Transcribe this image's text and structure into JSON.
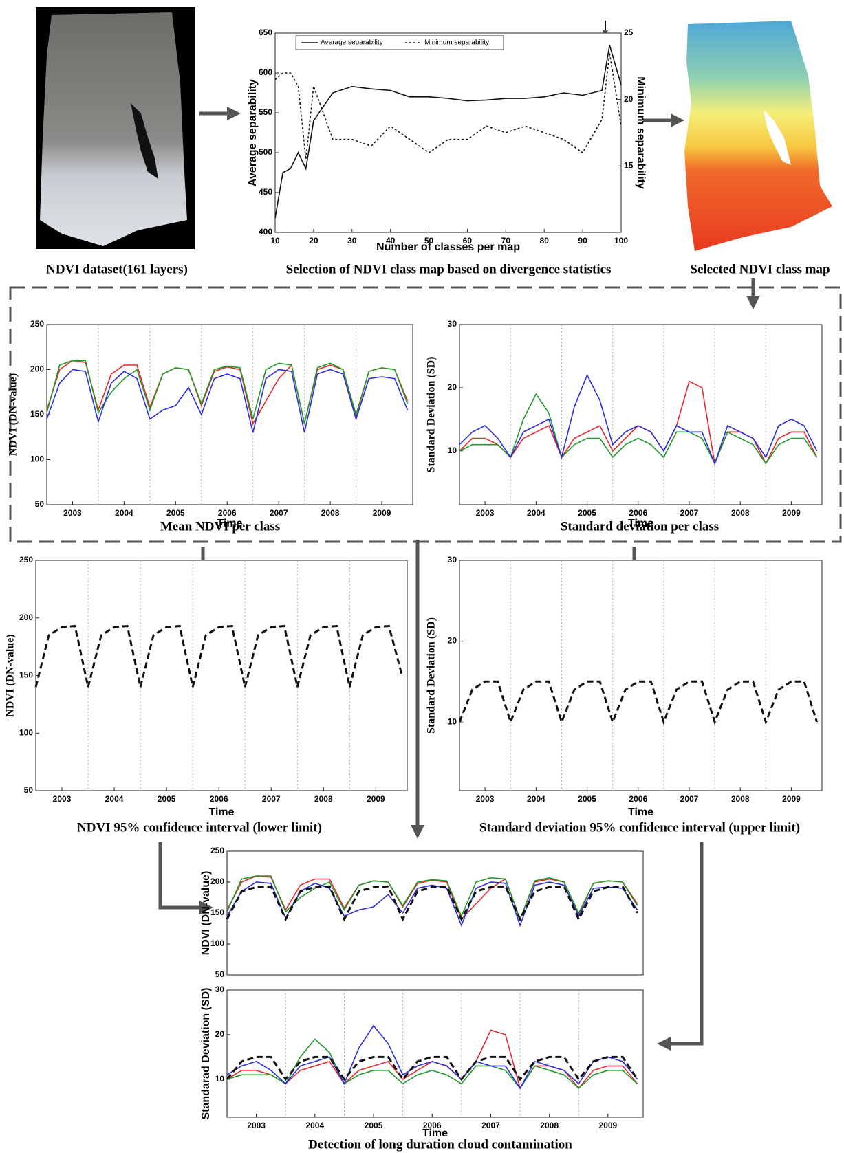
{
  "captions": [
    "NDVI dataset(161 layers)",
    "Selection of NDVI class map based on divergence statistics",
    "Selected NDVI class map",
    "Mean NDVI per class",
    "Standard deviation per class",
    "NDVI 95% confidence interval (lower limit)",
    "Standard deviation 95% confidence interval (upper limit)",
    "Detection of long duration cloud contamination"
  ],
  "chart_data": [
    {
      "type": "line",
      "x_label": "Number of classes per map",
      "y_label": "Average separability",
      "y2_label": "Minimum separability",
      "legend": "upper center",
      "x": [
        10,
        12,
        14,
        16,
        18,
        20,
        25,
        30,
        35,
        40,
        45,
        50,
        55,
        60,
        65,
        70,
        75,
        80,
        85,
        90,
        95,
        97,
        100
      ],
      "series": [
        {
          "name": "Average separability",
          "color": "#111111",
          "style": "solid",
          "values": [
            418,
            475,
            480,
            500,
            480,
            540,
            575,
            583,
            580,
            578,
            570,
            570,
            568,
            565,
            566,
            568,
            568,
            570,
            575,
            572,
            578,
            635,
            585
          ]
        },
        {
          "name": "Minimum separability",
          "color": "#111111",
          "style": "dotted",
          "axis": "y2",
          "values": [
            21.5,
            22,
            22,
            21,
            15.5,
            21,
            17,
            17,
            16.5,
            18,
            17,
            16,
            17,
            17,
            18,
            17.5,
            18,
            17.5,
            17,
            16,
            18.5,
            23.5,
            18
          ]
        }
      ],
      "xlim": [
        10,
        100
      ],
      "xticks": [
        10,
        20,
        30,
        40,
        50,
        60,
        70,
        80,
        90,
        100
      ],
      "ylim": [
        400,
        650
      ],
      "yticks": [
        400,
        450,
        500,
        550,
        600,
        650
      ],
      "y2lim": [
        10,
        25
      ],
      "y2ticks": [
        15,
        20,
        25
      ]
    },
    {
      "type": "line",
      "x_label": "Time",
      "y_label": "NDVI (DN-value)",
      "year_separators": true,
      "x": [
        2002.5,
        2002.75,
        2003,
        2003.25,
        2003.5,
        2003.75,
        2004,
        2004.25,
        2004.5,
        2004.75,
        2005,
        2005.25,
        2005.5,
        2005.75,
        2006,
        2006.25,
        2006.5,
        2006.75,
        2007,
        2007.25,
        2007.5,
        2007.75,
        2008,
        2008.25,
        2008.5,
        2008.75,
        2009,
        2009.25,
        2009.5
      ],
      "series": [
        {
          "color": "#e8262a",
          "style": "solid",
          "values": [
            155,
            200,
            210,
            208,
            155,
            195,
            205,
            205,
            158,
            195,
            202,
            200,
            160,
            198,
            203,
            200,
            140,
            165,
            190,
            205,
            140,
            200,
            205,
            200,
            148,
            198,
            202,
            200,
            165
          ]
        },
        {
          "color": "#1f9a2a",
          "style": "solid",
          "values": [
            152,
            205,
            210,
            210,
            152,
            175,
            190,
            200,
            155,
            195,
            202,
            200,
            162,
            200,
            204,
            202,
            145,
            200,
            207,
            205,
            140,
            202,
            207,
            200,
            150,
            198,
            202,
            200,
            162
          ]
        },
        {
          "color": "#2b2ee0",
          "style": "solid",
          "values": [
            145,
            185,
            200,
            198,
            142,
            185,
            198,
            190,
            145,
            155,
            160,
            180,
            150,
            190,
            195,
            190,
            130,
            190,
            200,
            198,
            130,
            195,
            200,
            195,
            145,
            190,
            192,
            190,
            155
          ]
        }
      ],
      "xlim": [
        2002.5,
        2009.6
      ],
      "xticks": [
        2003,
        2004,
        2005,
        2006,
        2007,
        2008,
        2009
      ],
      "ylim": [
        50,
        250
      ],
      "yticks": [
        50,
        100,
        150,
        200,
        250
      ]
    },
    {
      "type": "line",
      "x_label": "Time",
      "y_label": "Standard Deviation (SD)",
      "year_separators": true,
      "x": [
        2002.5,
        2002.75,
        2003,
        2003.25,
        2003.5,
        2003.75,
        2004,
        2004.25,
        2004.5,
        2004.75,
        2005,
        2005.25,
        2005.5,
        2005.75,
        2006,
        2006.25,
        2006.5,
        2006.75,
        2007,
        2007.25,
        2007.5,
        2007.75,
        2008,
        2008.25,
        2008.5,
        2008.75,
        2009,
        2009.25,
        2009.5
      ],
      "series": [
        {
          "color": "#e8262a",
          "style": "solid",
          "values": [
            10,
            12,
            12,
            11,
            9,
            12,
            13,
            14,
            9,
            12,
            13,
            14,
            10,
            12,
            14,
            13,
            10,
            14,
            21,
            20,
            8,
            13,
            13,
            12,
            8,
            12,
            13,
            13,
            9
          ]
        },
        {
          "color": "#1f9a2a",
          "style": "solid",
          "values": [
            10,
            11,
            11,
            11,
            9,
            15,
            19,
            16,
            9,
            11,
            12,
            12,
            9,
            11,
            12,
            11,
            9,
            13,
            13,
            12,
            8,
            13,
            12,
            11,
            8,
            11,
            12,
            12,
            9
          ]
        },
        {
          "color": "#2b2ee0",
          "style": "solid",
          "values": [
            11,
            13,
            14,
            12,
            9,
            13,
            14,
            15,
            9,
            17,
            22,
            18,
            11,
            13,
            14,
            13,
            10,
            14,
            13,
            13,
            8,
            14,
            13,
            12,
            9,
            14,
            15,
            14,
            10
          ]
        }
      ],
      "xlim": [
        2002.5,
        2009.6
      ],
      "xticks": [
        2003,
        2004,
        2005,
        2006,
        2007,
        2008,
        2009
      ],
      "ylim": [
        1.5,
        30
      ],
      "yticks": [
        10,
        20,
        30
      ]
    },
    {
      "type": "line",
      "x_label": "Time",
      "y_label": "NDVI (DN-value)",
      "year_separators": true,
      "x": [
        2002.5,
        2002.75,
        2003,
        2003.25,
        2003.5,
        2003.75,
        2004,
        2004.25,
        2004.5,
        2004.75,
        2005,
        2005.25,
        2005.5,
        2005.75,
        2006,
        2006.25,
        2006.5,
        2006.75,
        2007,
        2007.25,
        2007.5,
        2007.75,
        2008,
        2008.25,
        2008.5,
        2008.75,
        2009,
        2009.25,
        2009.5
      ],
      "series": [
        {
          "color": "#111111",
          "style": "dashed",
          "values": [
            140,
            185,
            192,
            193,
            140,
            185,
            192,
            193,
            140,
            185,
            192,
            193,
            140,
            185,
            192,
            193,
            140,
            185,
            192,
            193,
            140,
            185,
            192,
            193,
            140,
            185,
            192,
            193,
            150
          ]
        }
      ],
      "xlim": [
        2002.5,
        2009.6
      ],
      "xticks": [
        2003,
        2004,
        2005,
        2006,
        2007,
        2008,
        2009
      ],
      "ylim": [
        50,
        250
      ],
      "yticks": [
        50,
        100,
        150,
        200,
        250
      ]
    },
    {
      "type": "line",
      "x_label": "Time",
      "y_label": "Standard Deviation (SD)",
      "year_separators": true,
      "x": [
        2002.5,
        2002.75,
        2003,
        2003.25,
        2003.5,
        2003.75,
        2004,
        2004.25,
        2004.5,
        2004.75,
        2005,
        2005.25,
        2005.5,
        2005.75,
        2006,
        2006.25,
        2006.5,
        2006.75,
        2007,
        2007.25,
        2007.5,
        2007.75,
        2008,
        2008.25,
        2008.5,
        2008.75,
        2009,
        2009.25,
        2009.5
      ],
      "series": [
        {
          "color": "#111111",
          "style": "dashed",
          "values": [
            10,
            14,
            15,
            15,
            10,
            14,
            15,
            15,
            10,
            14,
            15,
            15,
            10,
            14,
            15,
            15,
            10,
            14,
            15,
            15,
            10,
            14,
            15,
            15,
            10,
            14,
            15,
            15,
            10
          ]
        }
      ],
      "xlim": [
        2002.5,
        2009.6
      ],
      "xticks": [
        2003,
        2004,
        2005,
        2006,
        2007,
        2008,
        2009
      ],
      "ylim": [
        1.5,
        30
      ],
      "yticks": [
        10,
        20,
        30
      ]
    },
    {
      "type": "line",
      "y_label": "NDVI (DN-value)",
      "xlim": [
        2002.5,
        2009.6
      ],
      "ylim": [
        50,
        250
      ],
      "yticks": [
        50,
        100,
        150,
        200,
        250
      ]
    },
    {
      "type": "line",
      "x_label": "Time",
      "y_label": "Standarad Deviation (SD)",
      "year_separators": true,
      "xlim": [
        2002.5,
        2009.6
      ],
      "xticks": [
        2003,
        2004,
        2005,
        2006,
        2007,
        2008,
        2009
      ],
      "ylim": [
        1.5,
        30
      ],
      "yticks": [
        10,
        20,
        30
      ]
    }
  ]
}
